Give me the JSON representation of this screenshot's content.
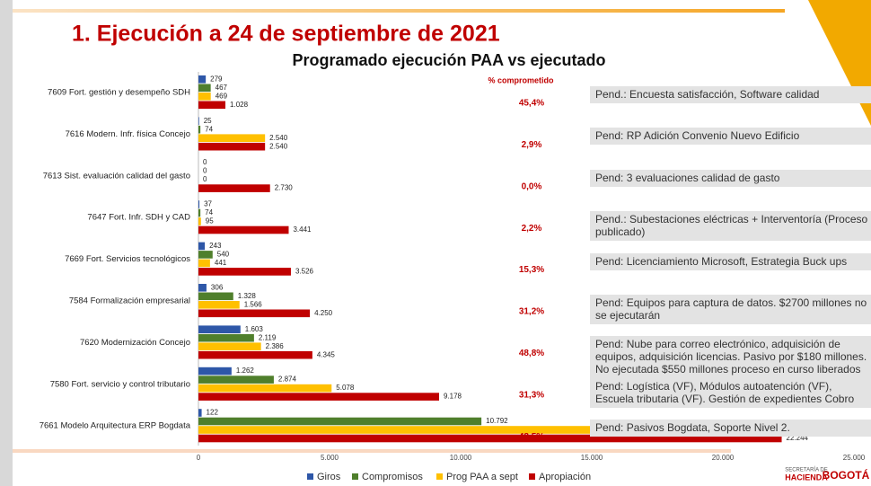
{
  "header": {
    "title": "1. Ejecución a 24 de septiembre de 2021"
  },
  "chart_data": {
    "type": "hbar",
    "title": "Programado ejecución PAA vs ejecutado",
    "categories": [
      "7609  Fort. gestión y desempeño SDH",
      "7616  Modern. Infr. física Concejo",
      "7613  Sist. evaluación calidad del gasto",
      "7647  Fort. Infr. SDH y CAD",
      "7669  Fort. Servicios tecnológicos",
      "7584  Formalización empresarial",
      "7620  Modernización Concejo",
      "7580  Fort.  servicio y control tributario",
      "7661  Modelo Arquitectura ERP Bogdata"
    ],
    "series": [
      {
        "name": "Giros",
        "color": "#2e57a8",
        "values": [
          279,
          25,
          0,
          37,
          243,
          306,
          1603,
          1262,
          122
        ],
        "value_labels": [
          "279",
          "25",
          "0",
          "37",
          "243",
          "306",
          "1.603",
          "1.262",
          "122"
        ]
      },
      {
        "name": "Compromisos",
        "color": "#4f7f2c",
        "values": [
          467,
          74,
          0,
          74,
          540,
          1328,
          2119,
          2874,
          10792
        ],
        "value_labels": [
          "467",
          "74",
          "0",
          "74",
          "540",
          "1.328",
          "2.119",
          "2.874",
          "10.792"
        ]
      },
      {
        "name": "Prog PAA a sept",
        "color": "#ffc000",
        "values": [
          469,
          2540,
          0,
          95,
          441,
          1566,
          2386,
          5078,
          17513
        ],
        "value_labels": [
          "469",
          "2.540",
          "0",
          "95",
          "441",
          "1.566",
          "2.386",
          "5.078",
          "17.513"
        ]
      },
      {
        "name": "Apropiación",
        "color": "#c00000",
        "values": [
          1028,
          2540,
          2730,
          3441,
          3526,
          4250,
          4345,
          9178,
          22244
        ],
        "value_labels": [
          "1.028",
          "2.540",
          "2.730",
          "3.441",
          "3.526",
          "4.250",
          "4.345",
          "9.178",
          "22.244"
        ]
      }
    ],
    "xlim": [
      0,
      25000
    ],
    "xticks": [
      0,
      {
        "value": 5000,
        "label": "5.000"
      },
      {
        "value": 10000,
        "label": "10.000"
      },
      {
        "value": 15000,
        "label": "15.000"
      },
      {
        "value": 20000,
        "label": "20.000"
      },
      {
        "value": 25000,
        "label": "25.000"
      }
    ],
    "percent_header": "% comprometido",
    "percent": [
      45.4,
      2.9,
      0.0,
      2.2,
      15.3,
      31.2,
      48.8,
      31.3,
      48.5
    ],
    "percent_labels": [
      "45,4%",
      "2,9%",
      "0,0%",
      "2,2%",
      "15,3%",
      "31,2%",
      "48,8%",
      "31,3%",
      "48,5%"
    ],
    "notes": [
      "Pend.: Encuesta satisfacción, Software calidad",
      "Pend: RP Adición Convenio Nuevo Edificio",
      "Pend: 3 evaluaciones calidad de gasto",
      "Pend.: Subestaciones eléctricas + Interventoría (Proceso publicado)",
      "Pend: Licenciamiento Microsoft, Estrategia Buck ups",
      "Pend: Equipos para captura de datos. $2700 millones no se ejecutarán",
      "Pend: Nube para correo electrónico, adquisición de equipos, adquisición licencias. Pasivo por $180 millones. No ejecutada $550 millones proceso en curso liberados",
      "Pend: Logística (VF), Módulos autoatención (VF), Escuela tributaria (VF). Gestión de expedientes Cobro",
      "Pend: Pasivos Bogdata, Soporte Nivel 2."
    ]
  },
  "footer": {
    "logo_text": [
      "SECRETARÍA DE",
      "HACIENDA",
      "BOGOTÁ"
    ]
  }
}
